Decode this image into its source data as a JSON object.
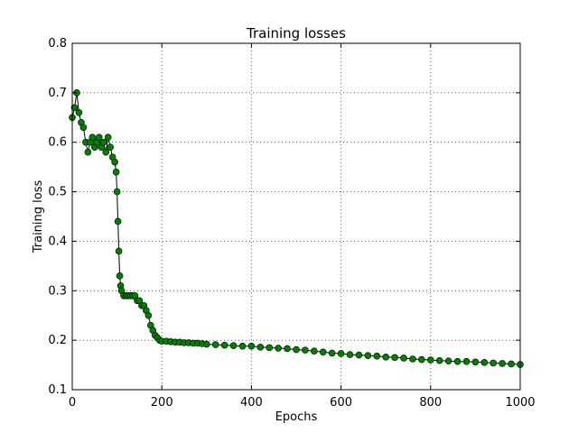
{
  "chart_data": {
    "type": "line",
    "title": "Training losses",
    "xlabel": "Epochs",
    "ylabel": "Training loss",
    "xlim": [
      0,
      1000
    ],
    "ylim": [
      0.1,
      0.8
    ],
    "x_ticks": [
      0,
      200,
      400,
      600,
      800,
      1000
    ],
    "y_ticks": [
      0.1,
      0.2,
      0.3,
      0.4,
      0.5,
      0.6,
      0.7,
      0.8
    ],
    "x_tick_labels": [
      "0",
      "200",
      "400",
      "600",
      "800",
      "1000"
    ],
    "y_tick_labels": [
      "0.1",
      "0.2",
      "0.3",
      "0.4",
      "0.5",
      "0.6",
      "0.7",
      "0.8"
    ],
    "grid": true,
    "legend": "none",
    "line_color": "#000000",
    "marker": "circle",
    "marker_color": "#007f00",
    "series": [
      {
        "x": [
          0,
          5,
          10,
          15,
          20,
          25,
          30,
          35,
          40,
          45,
          50,
          55,
          60,
          65,
          70,
          75,
          80,
          85,
          90,
          95,
          98,
          100,
          102,
          104,
          106,
          108,
          110,
          115,
          120,
          125,
          130,
          135,
          140,
          145,
          150,
          155,
          160,
          165,
          170,
          175,
          180,
          185,
          190,
          195,
          200,
          210,
          220,
          230,
          240,
          250,
          260,
          270,
          280,
          290,
          300,
          320,
          340,
          360,
          380,
          400,
          420,
          440,
          460,
          480,
          500,
          520,
          540,
          560,
          580,
          600,
          620,
          640,
          660,
          680,
          700,
          720,
          740,
          760,
          780,
          800,
          820,
          840,
          860,
          880,
          900,
          920,
          940,
          960,
          980,
          1000
        ],
        "y": [
          0.65,
          0.67,
          0.7,
          0.66,
          0.64,
          0.63,
          0.6,
          0.58,
          0.6,
          0.61,
          0.59,
          0.6,
          0.61,
          0.59,
          0.6,
          0.58,
          0.61,
          0.59,
          0.57,
          0.56,
          0.54,
          0.5,
          0.44,
          0.38,
          0.33,
          0.31,
          0.3,
          0.29,
          0.29,
          0.29,
          0.29,
          0.29,
          0.29,
          0.28,
          0.28,
          0.27,
          0.27,
          0.26,
          0.25,
          0.23,
          0.22,
          0.21,
          0.205,
          0.2,
          0.198,
          0.198,
          0.197,
          0.196,
          0.196,
          0.195,
          0.195,
          0.194,
          0.194,
          0.193,
          0.192,
          0.191,
          0.19,
          0.189,
          0.188,
          0.188,
          0.186,
          0.185,
          0.184,
          0.183,
          0.181,
          0.18,
          0.178,
          0.176,
          0.174,
          0.173,
          0.171,
          0.17,
          0.169,
          0.168,
          0.166,
          0.165,
          0.164,
          0.162,
          0.161,
          0.16,
          0.159,
          0.158,
          0.157,
          0.157,
          0.156,
          0.155,
          0.154,
          0.153,
          0.152,
          0.151
        ]
      }
    ]
  }
}
